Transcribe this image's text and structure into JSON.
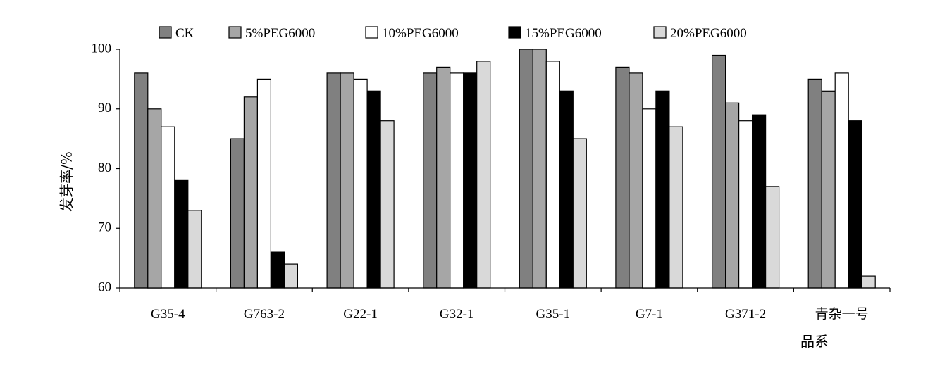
{
  "chart_data": {
    "type": "bar",
    "title": "",
    "xlabel": "品系",
    "ylabel": "发芽率/%",
    "ylim": [
      60,
      100
    ],
    "yticks": [
      60,
      70,
      80,
      90,
      100
    ],
    "legend_position": "top",
    "grid": false,
    "categories": [
      "G35-4",
      "G763-2",
      "G22-1",
      "G32-1",
      "G35-1",
      "G7-1",
      "G371-2",
      "青杂一号"
    ],
    "series": [
      {
        "name": "CK",
        "color": "#808080",
        "values": [
          96,
          85,
          96,
          96,
          100,
          97,
          99,
          95
        ]
      },
      {
        "name": "5%PEG6000",
        "color": "#a6a6a6",
        "values": [
          90,
          92,
          96,
          97,
          100,
          96,
          91,
          93
        ]
      },
      {
        "name": "10%PEG6000",
        "color": "#ffffff",
        "values": [
          87,
          95,
          95,
          96,
          98,
          90,
          88,
          96
        ]
      },
      {
        "name": "15%PEG6000",
        "color": "#000000",
        "values": [
          78,
          66,
          93,
          96,
          93,
          93,
          89,
          88
        ]
      },
      {
        "name": "20%PEG6000",
        "color": "#d9d9d9",
        "values": [
          73,
          64,
          88,
          98,
          85,
          87,
          77,
          62
        ]
      }
    ]
  }
}
